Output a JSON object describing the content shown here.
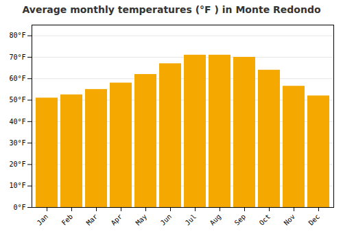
{
  "chart_data": {
    "type": "bar",
    "title": "Average monthly temperatures (°F ) in Monte Redondo",
    "categories": [
      "Jan",
      "Feb",
      "Mar",
      "Apr",
      "May",
      "Jun",
      "Jul",
      "Aug",
      "Sep",
      "Oct",
      "Nov",
      "Dec"
    ],
    "values": [
      51,
      52.5,
      55,
      58,
      62,
      67,
      71,
      71,
      70,
      64,
      56.5,
      52
    ],
    "color": "#F5A800",
    "ylim": [
      0,
      85
    ],
    "yticks": [
      {
        "value": 0,
        "label": "0°F"
      },
      {
        "value": 10,
        "label": "10°F"
      },
      {
        "value": 20,
        "label": "20°F"
      },
      {
        "value": 30,
        "label": "30°F"
      },
      {
        "value": 40,
        "label": "40°F"
      },
      {
        "value": 50,
        "label": "50°F"
      },
      {
        "value": 60,
        "label": "60°F"
      },
      {
        "value": 70,
        "label": "70°F"
      },
      {
        "value": 80,
        "label": "80°F"
      }
    ],
    "grid": true
  }
}
